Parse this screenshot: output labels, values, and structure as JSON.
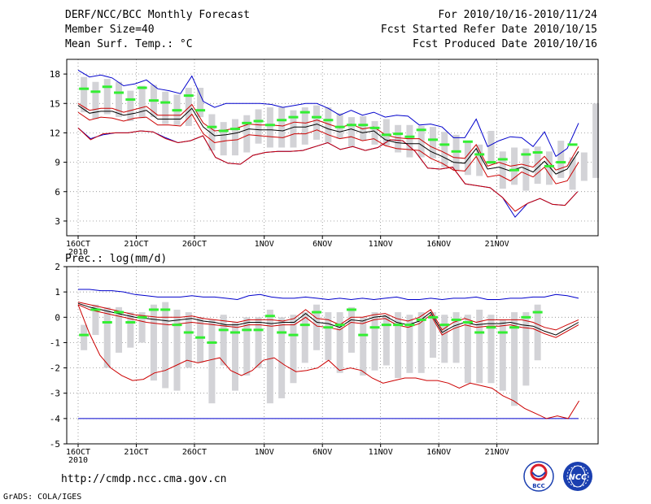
{
  "header": {
    "title": "DERF/NCC/BCC Monthly Forecast",
    "member_size": "Member Size=40",
    "variable": "Mean Surf. Temp.: °C",
    "period": "For 2010/10/16-2010/11/24",
    "fcst_started": "Fcst Started Refer Date 2010/10/15",
    "fcst_produced": "Fcst Produced Date 2010/10/16"
  },
  "footer": {
    "url": "http://cmdp.ncc.cma.gov.cn",
    "credit": "GrADS: COLA/IGES",
    "logo_bcc_label": "BCC",
    "logo_ncc_label": "NCC"
  },
  "colors": {
    "mean": "#000000",
    "inner": "#cc0000",
    "outer": "#0000cc",
    "box": "#d3d3d7",
    "median": "#33ee33",
    "grid": "#777777"
  },
  "chart_data": [
    {
      "type": "line",
      "title": "Mean Surf. Temp.: °C",
      "x_start": "16OCT 2010",
      "x_ticks": [
        "16OCT",
        "21OCT",
        "26OCT",
        "1NOV",
        "6NOV",
        "11NOV",
        "16NOV",
        "21NOV"
      ],
      "x_tick_days": [
        0,
        5,
        10,
        16,
        21,
        26,
        31,
        36
      ],
      "x_year_label": "2010",
      "ylim": [
        1.5,
        19.5
      ],
      "y_ticks": [
        3,
        6,
        9,
        12,
        15,
        18
      ],
      "grid": true,
      "series": [
        {
          "name": "max",
          "values": [
            12.5,
            11.4,
            11.8,
            12,
            12,
            12.2,
            12.1,
            11.5,
            11,
            11.2,
            11.7,
            9.5,
            8.9,
            8.8,
            9.7,
            10,
            10.1,
            10.1,
            10.2,
            10.6,
            11,
            10.3,
            10.6,
            10.2,
            10.5,
            11.3,
            11.2,
            10.1,
            8.4,
            8.3,
            8.5,
            6.8,
            6.6,
            6.4,
            5.4,
            3.4,
            4.8,
            5.3,
            4.7,
            4.6,
            6
          ]
        },
        {
          "name": "p90",
          "values": [
            18.4,
            17.7,
            17.9,
            17.6,
            16.8,
            17,
            17.4,
            16.5,
            16.3,
            16,
            17.8,
            15.2,
            14.6,
            15,
            15,
            15,
            15,
            14.9,
            14.6,
            14.8,
            15,
            15,
            14.5,
            13.8,
            14.3,
            13.8,
            14.1,
            13.6,
            13.8,
            13.7,
            12.8,
            12.9,
            12.6,
            11.5,
            11.5,
            13.4,
            10.6,
            11.2,
            11.6,
            11.5,
            10.6,
            12.1,
            9.6,
            10.4,
            13
          ]
        },
        {
          "name": "upper",
          "values": [
            15,
            14.3,
            14.5,
            14.5,
            14.1,
            14.4,
            14.7,
            13.8,
            13.8,
            13.8,
            14.9,
            13,
            12.2,
            12.3,
            12.5,
            12.9,
            12.8,
            12.8,
            12.7,
            13.1,
            13,
            13.3,
            12.9,
            12.5,
            12.9,
            12.4,
            12.6,
            11.8,
            11.5,
            11.4,
            11.4,
            10.6,
            10.1,
            9.5,
            9.4,
            10.8,
            8.6,
            9,
            8.6,
            8.8,
            8.5,
            9.6,
            8.2,
            8.6,
            10.6
          ]
        },
        {
          "name": "mean",
          "values": [
            14.8,
            14,
            14.2,
            14.2,
            13.8,
            14,
            14.3,
            13.4,
            13.4,
            13.4,
            14.5,
            12.6,
            11.7,
            11.8,
            12,
            12.4,
            12.3,
            12.3,
            12.2,
            12.6,
            12.6,
            12.9,
            12.4,
            12.1,
            12.4,
            12,
            12.2,
            11.3,
            11,
            10.9,
            10.9,
            10.1,
            9.6,
            9,
            8.9,
            10.4,
            8.3,
            8.5,
            8.1,
            8.5,
            8,
            9.1,
            7.8,
            8.3,
            10.1
          ]
        },
        {
          "name": "lower",
          "values": [
            14.1,
            13.3,
            13.6,
            13.5,
            13.2,
            13.5,
            13.6,
            12.8,
            12.8,
            12.7,
            13.9,
            11.9,
            11,
            11.2,
            11.3,
            11.8,
            11.7,
            11.6,
            11.5,
            11.9,
            11.9,
            12.3,
            11.8,
            11.4,
            11.6,
            11.2,
            11.4,
            10.7,
            10.4,
            10.3,
            10.2,
            9.4,
            8.9,
            8.2,
            8.1,
            9.6,
            7.5,
            7.7,
            7.1,
            8,
            7.5,
            8.5,
            6.8,
            7.1,
            9
          ]
        },
        {
          "name": "min_inner",
          "values": [
            12.5,
            11.3,
            11.9,
            12,
            12,
            12.2,
            12.1,
            11.4,
            11,
            11.2,
            11.7,
            9.5,
            8.9,
            8.8,
            9.7,
            10,
            10.1,
            10.1,
            10.2,
            10.6,
            11,
            10.3,
            10.6,
            10.2,
            10.5,
            11.3,
            11.2,
            10.1,
            8.4,
            8.3,
            8.5,
            6.8,
            6.6,
            6.4,
            5.4,
            4,
            4.8,
            5.3,
            4.7,
            4.6,
            6
          ]
        },
        {
          "name": "median",
          "values": [
            16.5,
            16.2,
            16.7,
            16.1,
            15.4,
            16.6,
            15.3,
            15.1,
            14.3,
            15.8,
            14.3,
            12.6,
            12.2,
            12.4,
            13,
            13.2,
            12.8,
            13.3,
            13.6,
            14.1,
            13.6,
            13.3,
            12.6,
            12.8,
            12.8,
            12.5,
            11.8,
            11.9,
            11.6,
            12.3,
            11.3,
            10.8,
            10.1,
            11.1,
            9.8,
            9,
            9.3,
            8.2,
            9.8,
            10,
            8.6,
            9,
            10.8
          ]
        },
        {
          "name": "box_top",
          "values": [
            17.7,
            17.2,
            17.5,
            17.2,
            16.3,
            16.8,
            16.9,
            16.2,
            15.9,
            16.6,
            16.6,
            13.9,
            13.1,
            13.4,
            13.8,
            14.4,
            14.6,
            14.6,
            14.3,
            14.6,
            14.8,
            14.6,
            14,
            13.6,
            13.7,
            13.2,
            13.4,
            12.8,
            12.8,
            12.7,
            12.6,
            12.1,
            11.8,
            11,
            10.8,
            12.2,
            10.1,
            10.5,
            10.4,
            10.6,
            10.1,
            11.2,
            9.5,
            10,
            15
          ]
        },
        {
          "name": "box_bottom",
          "values": [
            14.1,
            13.4,
            13.9,
            13.6,
            13.2,
            13.5,
            13.6,
            12.9,
            12.8,
            12.7,
            13.6,
            10.2,
            9.7,
            9.7,
            10,
            10.9,
            10.5,
            10.5,
            10.5,
            10.8,
            11.3,
            11,
            11.4,
            10.6,
            11.2,
            10.8,
            10.7,
            10,
            9.5,
            9.5,
            9.4,
            8.5,
            8.1,
            7.7,
            7.6,
            8.8,
            6.3,
            6.7,
            6.1,
            6.8,
            6.7,
            7.4,
            6.2,
            7.1,
            7.4
          ]
        }
      ]
    },
    {
      "type": "line",
      "title": "Prec.: log(mm/d)",
      "x_start": "16OCT 2010",
      "x_ticks": [
        "16OCT",
        "21OCT",
        "26OCT",
        "1NOV",
        "6NOV",
        "11NOV",
        "16NOV",
        "21NOV"
      ],
      "x_tick_days": [
        0,
        5,
        10,
        16,
        21,
        26,
        31,
        36
      ],
      "x_year_label": "2010",
      "ylim": [
        -5,
        2
      ],
      "y_ticks": [
        -5,
        -4,
        -3,
        -2,
        -1,
        0,
        1,
        2
      ],
      "grid": true,
      "series": [
        {
          "name": "max",
          "values": [
            1.1,
            1.1,
            1.05,
            1.05,
            1,
            0.9,
            0.85,
            0.8,
            0.8,
            0.8,
            0.85,
            0.8,
            0.8,
            0.75,
            0.7,
            0.85,
            0.9,
            0.8,
            0.75,
            0.75,
            0.8,
            0.75,
            0.7,
            0.75,
            0.7,
            0.75,
            0.7,
            0.75,
            0.8,
            0.7,
            0.7,
            0.75,
            0.7,
            0.75,
            0.75,
            0.8,
            0.7,
            0.7,
            0.75,
            0.75,
            0.8,
            0.8,
            0.9,
            0.85,
            0.75
          ]
        },
        {
          "name": "mean_upper",
          "values": [
            0.6,
            0.5,
            0.4,
            0.3,
            0.2,
            0.1,
            0.05,
            0,
            0,
            0,
            0.05,
            -0.05,
            -0.1,
            -0.15,
            -0.2,
            -0.1,
            -0.1,
            -0.1,
            -0.15,
            -0.05,
            0.3,
            -0.05,
            -0.1,
            -0.3,
            0,
            0,
            0.1,
            0.15,
            -0.05,
            -0.15,
            0,
            0.3,
            -0.5,
            -0.2,
            -0.05,
            -0.2,
            -0.1,
            -0.1,
            -0.1,
            -0.1,
            -0.2,
            -0.4,
            -0.5,
            -0.3,
            -0.1
          ]
        },
        {
          "name": "mean",
          "values": [
            0.55,
            0.4,
            0.3,
            0.2,
            0.1,
            0,
            -0.05,
            -0.1,
            -0.15,
            -0.1,
            -0.05,
            -0.15,
            -0.2,
            -0.3,
            -0.3,
            -0.2,
            -0.2,
            -0.25,
            -0.2,
            -0.2,
            0.15,
            -0.2,
            -0.25,
            -0.4,
            -0.1,
            -0.15,
            0,
            0.05,
            -0.2,
            -0.3,
            -0.15,
            0.2,
            -0.6,
            -0.35,
            -0.2,
            -0.3,
            -0.25,
            -0.25,
            -0.2,
            -0.3,
            -0.35,
            -0.55,
            -0.7,
            -0.45,
            -0.2
          ]
        },
        {
          "name": "mean_lower",
          "values": [
            0.5,
            0.3,
            0.2,
            0.1,
            0,
            -0.1,
            -0.2,
            -0.25,
            -0.3,
            -0.25,
            -0.2,
            -0.25,
            -0.3,
            -0.35,
            -0.4,
            -0.3,
            -0.3,
            -0.35,
            -0.3,
            -0.3,
            0,
            -0.35,
            -0.4,
            -0.5,
            -0.2,
            -0.25,
            -0.1,
            -0.05,
            -0.3,
            -0.4,
            -0.25,
            0.1,
            -0.7,
            -0.45,
            -0.3,
            -0.4,
            -0.35,
            -0.35,
            -0.3,
            -0.4,
            -0.45,
            -0.65,
            -0.8,
            -0.55,
            -0.3
          ]
        },
        {
          "name": "lower_red",
          "values": [
            0.5,
            -0.6,
            -1.5,
            -2,
            -2.3,
            -2.5,
            -2.45,
            -2.2,
            -2.1,
            -1.9,
            -1.7,
            -1.8,
            -1.7,
            -1.6,
            -2.1,
            -2.3,
            -2.1,
            -1.7,
            -1.6,
            -1.9,
            -2.15,
            -2.1,
            -2,
            -1.7,
            -2.1,
            -2,
            -2.1,
            -2.4,
            -2.6,
            -2.5,
            -2.4,
            -2.4,
            -2.5,
            -2.5,
            -2.6,
            -2.8,
            -2.6,
            -2.7,
            -2.8,
            -3.1,
            -3.3,
            -3.6,
            -3.8,
            -4,
            -3.9,
            -4,
            -3.3
          ]
        },
        {
          "name": "min",
          "values": [
            -4,
            -4,
            -4,
            -4,
            -4,
            -4,
            -4,
            -4,
            -4,
            -4,
            -4,
            -4,
            -4,
            -4,
            -4,
            -4,
            -4,
            -4,
            -4,
            -4,
            -4,
            -4,
            -4,
            -4,
            -4,
            -4,
            -4,
            -4,
            -4,
            -4,
            -4,
            -4,
            -4,
            -4,
            -4,
            -4,
            -4,
            -4,
            -4,
            -4,
            -4,
            -4,
            -4,
            -4,
            -4
          ]
        },
        {
          "name": "median",
          "values": [
            -0.7,
            0.3,
            -0.2,
            0.2,
            -0.2,
            0,
            0.3,
            0.3,
            -0.3,
            -0.6,
            -0.8,
            -1,
            -0.5,
            -0.6,
            -0.5,
            -0.5,
            0.05,
            -0.6,
            -0.7,
            -0.3,
            0.2,
            -0.4,
            -0.3,
            0.3,
            -0.7,
            -0.4,
            -0.3,
            -0.3,
            -0.3,
            -0.1,
            0,
            -0.3,
            -0.1,
            -0.2,
            -0.6,
            -0.4,
            -0.6,
            -0.4,
            0,
            0.2
          ]
        },
        {
          "name": "box_top",
          "values": [
            -0.3,
            0.5,
            0.4,
            0.4,
            0.2,
            0.2,
            0.5,
            0.6,
            0.3,
            0.2,
            0,
            -0.1,
            0.1,
            -0.2,
            0,
            0,
            0.3,
            0,
            0.1,
            0.2,
            0.5,
            0.2,
            0.2,
            0.4,
            0,
            0.2,
            0.1,
            0.2,
            0.1,
            0.2,
            0.2,
            0.1,
            0.2,
            0.1,
            0.3,
            0.1,
            -0.1,
            0.2,
            0.2,
            0.5
          ]
        },
        {
          "name": "box_bottom",
          "values": [
            -1.3,
            -0.7,
            -2,
            -1.4,
            -1.2,
            -1,
            -2.5,
            -2.8,
            -2.9,
            -2,
            -1.8,
            -3.4,
            -1.9,
            -2.9,
            -2.3,
            -2,
            -3.4,
            -3.2,
            -2.6,
            -1.8,
            -1.3,
            -1.7,
            -2.2,
            -1.4,
            -2.3,
            -2.1,
            -1.9,
            -2.4,
            -2.2,
            -2.2,
            -1.6,
            -1.8,
            -1.8,
            -2.6,
            -2.6,
            -2.6,
            -2.9,
            -3.5,
            -2.7,
            -1.7
          ]
        }
      ]
    }
  ]
}
